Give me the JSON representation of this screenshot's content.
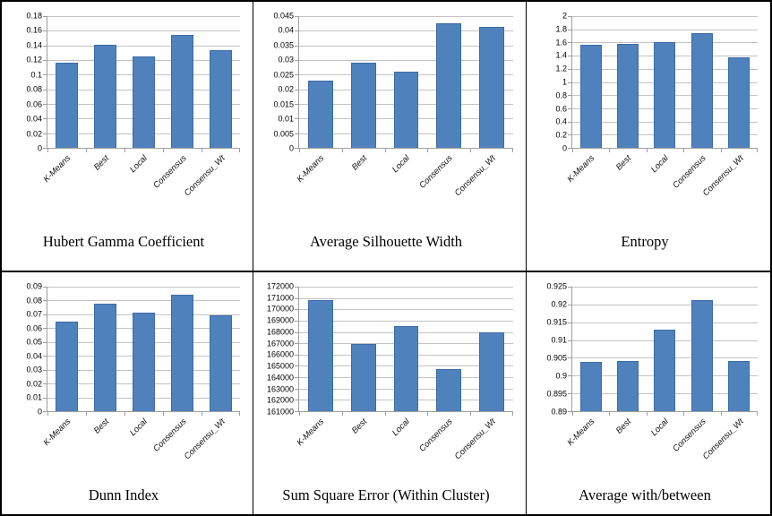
{
  "colors": {
    "bar_fill": "#4f81bd",
    "bar_border": "#3c6ba5",
    "gridline": "#c3c3c3",
    "axis_line": "#9e9e9e",
    "border_color": "#000000",
    "page_bg": "#ffffff"
  },
  "chart_data": [
    {
      "type": "bar",
      "title": "Hubert Gamma Coefficient",
      "categories": [
        "K-Means",
        "Best",
        "Local",
        "Consensus",
        "Consensu_Wt"
      ],
      "values": [
        0.116,
        0.141,
        0.125,
        0.154,
        0.133
      ],
      "ylim": [
        0,
        0.18
      ],
      "yticks": [
        "0.18",
        "0.16",
        "0.14",
        "0.12",
        "0.1",
        "0.08",
        "0.06",
        "0.04",
        "0.02",
        "0"
      ],
      "grid": true,
      "legend": "none"
    },
    {
      "type": "bar",
      "title": "Average Silhouette Width",
      "categories": [
        "K-Means",
        "Best",
        "Local",
        "Consensus",
        "Consensu_Wt"
      ],
      "values": [
        0.023,
        0.029,
        0.026,
        0.0425,
        0.0413
      ],
      "ylim": [
        0,
        0.045
      ],
      "yticks": [
        "0.045",
        "0.04",
        "0.035",
        "0.03",
        "0.025",
        "0.02",
        "0.015",
        "0.01",
        "0.005",
        "0"
      ],
      "grid": true,
      "legend": "none"
    },
    {
      "type": "bar",
      "title": "Entropy",
      "categories": [
        "K-Means",
        "Best",
        "Local",
        "Consensus",
        "Consensu_Wt"
      ],
      "values": [
        1.56,
        1.58,
        1.6,
        1.74,
        1.38
      ],
      "ylim": [
        0,
        2
      ],
      "yticks": [
        "2",
        "1.8",
        "1.6",
        "1.4",
        "1.2",
        "1",
        "0.8",
        "0.6",
        "0.4",
        "0.2",
        "0"
      ],
      "grid": true,
      "legend": "none"
    },
    {
      "type": "bar",
      "title": "Dunn Index",
      "categories": [
        "K-Means",
        "Best",
        "Local",
        "Consensus",
        "Consensu_Wt"
      ],
      "values": [
        0.065,
        0.078,
        0.0715,
        0.0845,
        0.069
      ],
      "ylim": [
        0,
        0.09
      ],
      "yticks": [
        "0.09",
        "0.08",
        "0.07",
        "0.06",
        "0.05",
        "0.04",
        "0.03",
        "0.02",
        "0.01",
        "0"
      ],
      "grid": true,
      "legend": "none"
    },
    {
      "type": "bar",
      "title": "Sum Square Error (Within Cluster)",
      "categories": [
        "K-Means",
        "Best",
        "Local",
        "Consensus",
        "Consensu_Wt"
      ],
      "values": [
        170800,
        166900,
        168550,
        164700,
        168000
      ],
      "ylim": [
        161000,
        172000
      ],
      "yticks": [
        "172000",
        "171000",
        "170000",
        "169000",
        "168000",
        "167000",
        "166000",
        "165000",
        "164000",
        "163000",
        "162000",
        "161000"
      ],
      "grid": true,
      "legend": "none"
    },
    {
      "type": "bar",
      "title": "Average with/between",
      "categories": [
        "K-Means",
        "Best",
        "Local",
        "Consensus",
        "Consensu_Wt"
      ],
      "values": [
        0.9038,
        0.904,
        0.913,
        0.9213,
        0.904
      ],
      "ylim": [
        0.89,
        0.925
      ],
      "yticks": [
        "0.925",
        "0.92",
        "0.915",
        "0.91",
        "0.905",
        "0.9",
        "0.895",
        "0.89"
      ],
      "grid": true,
      "legend": "none"
    }
  ]
}
